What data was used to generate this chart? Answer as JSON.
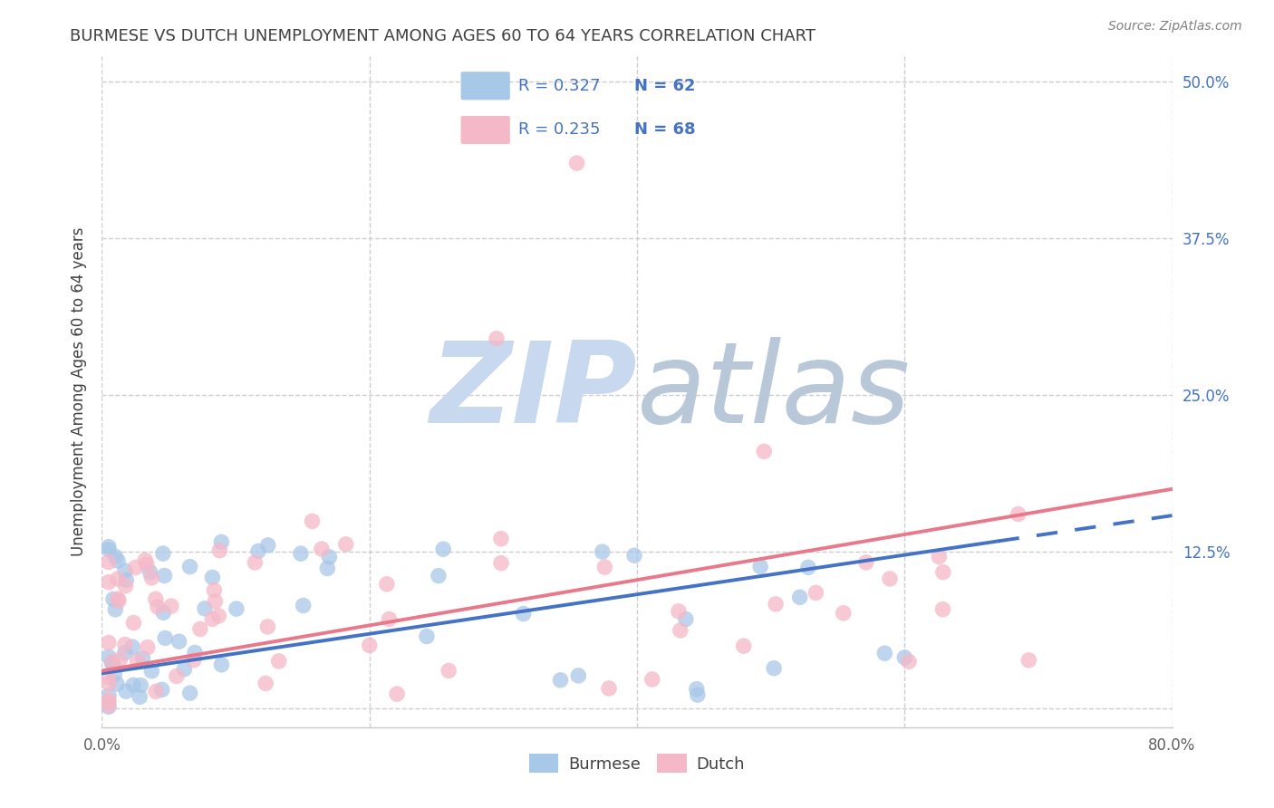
{
  "title": "BURMESE VS DUTCH UNEMPLOYMENT AMONG AGES 60 TO 64 YEARS CORRELATION CHART",
  "source": "Source: ZipAtlas.com",
  "ylabel": "Unemployment Among Ages 60 to 64 years",
  "xlim": [
    0.0,
    0.8
  ],
  "ylim": [
    -0.015,
    0.52
  ],
  "yticks_right": [
    0.0,
    0.125,
    0.25,
    0.375,
    0.5
  ],
  "yticklabels_right": [
    "",
    "12.5%",
    "25.0%",
    "37.5%",
    "50.0%"
  ],
  "background_color": "#ffffff",
  "grid_color": "#c8c8c8",
  "burmese_color": "#a8c8e8",
  "dutch_color": "#f5b8c8",
  "burmese_line_color": "#4472c4",
  "dutch_line_color": "#e8788a",
  "burmese_R": 0.327,
  "burmese_N": 62,
  "dutch_R": 0.235,
  "dutch_N": 68,
  "legend_text_color": "#4472c4",
  "right_tick_color": "#4472c4",
  "title_color": "#404040",
  "watermark_zip_color": "#c8d8ee",
  "watermark_atlas_color": "#b8c8d8"
}
